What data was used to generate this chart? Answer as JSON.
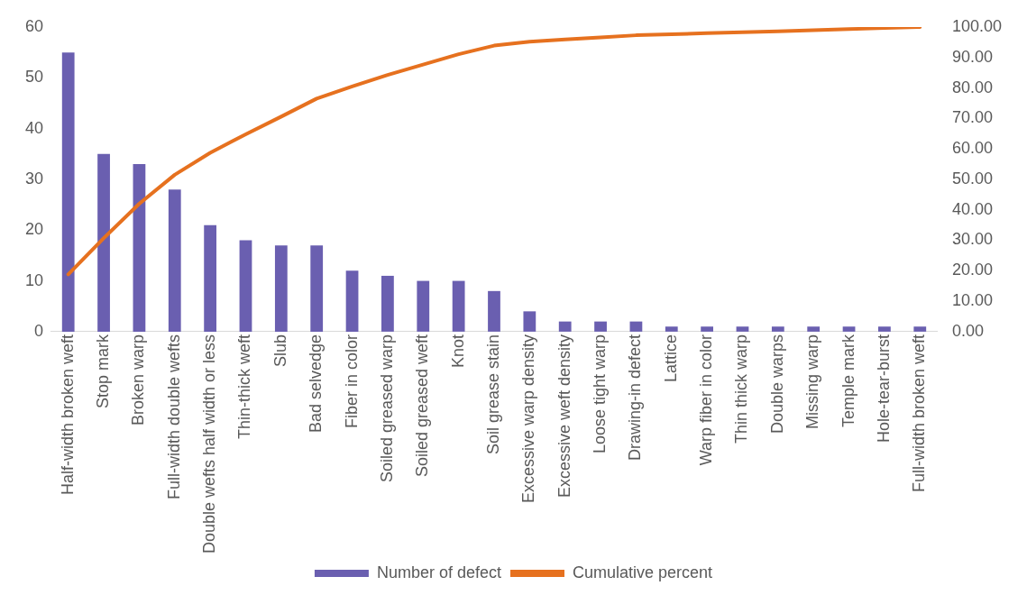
{
  "chart_data": {
    "type": "bar",
    "categories": [
      "Half-width broken weft",
      "Stop mark",
      "Broken warp",
      "Full-width double wefts",
      "Double wefts half width or less",
      "Thin-thick weft",
      "Slub",
      "Bad selvedge",
      "Fiber in color",
      "Soiled greased warp",
      "Soiled greased weft",
      "Knot",
      "Soil grease stain",
      "Excessive warp density",
      "Excessive weft density",
      "Loose tight warp",
      "Drawing-in defect",
      "Lattice",
      "Warp fiber in color",
      "Thin thick warp",
      "Double warps",
      "Missing warp",
      "Temple mark",
      "Hole-tear-burst",
      "Full-width broken weft"
    ],
    "series": [
      {
        "name": "Number of defect",
        "color": "#6a5fb0",
        "values": [
          55,
          35,
          33,
          28,
          21,
          18,
          17,
          17,
          12,
          11,
          10,
          10,
          8,
          4,
          2,
          2,
          2,
          1,
          1,
          1,
          1,
          1,
          1,
          1,
          1
        ]
      },
      {
        "name": "Cumulative percent",
        "type": "line",
        "axis": "y2",
        "color": "#e6711f",
        "values": [
          18.8,
          30.7,
          42.0,
          51.5,
          58.7,
          64.8,
          70.6,
          76.5,
          80.5,
          84.3,
          87.7,
          91.1,
          93.9,
          95.2,
          95.9,
          96.6,
          97.3,
          97.6,
          98.0,
          98.3,
          98.6,
          99.0,
          99.3,
          99.7,
          100.0
        ]
      }
    ],
    "ylim": [
      0,
      60
    ],
    "yticks": [
      0,
      10,
      20,
      30,
      40,
      50,
      60
    ],
    "y2lim": [
      0,
      100
    ],
    "y2ticks": [
      {
        "value": 0,
        "label": "0.00"
      },
      {
        "value": 10,
        "label": "10.00"
      },
      {
        "value": 20,
        "label": "20.00"
      },
      {
        "value": 30,
        "label": "30.00"
      },
      {
        "value": 40,
        "label": "40.00"
      },
      {
        "value": 50,
        "label": "50.00"
      },
      {
        "value": 60,
        "label": "60.00"
      },
      {
        "value": 70,
        "label": "70.00"
      },
      {
        "value": 80,
        "label": "80.00"
      },
      {
        "value": 90,
        "label": "90.00"
      },
      {
        "value": 100,
        "label": "100.00"
      }
    ],
    "grid": false,
    "legend": "bottom",
    "marker": "none"
  }
}
